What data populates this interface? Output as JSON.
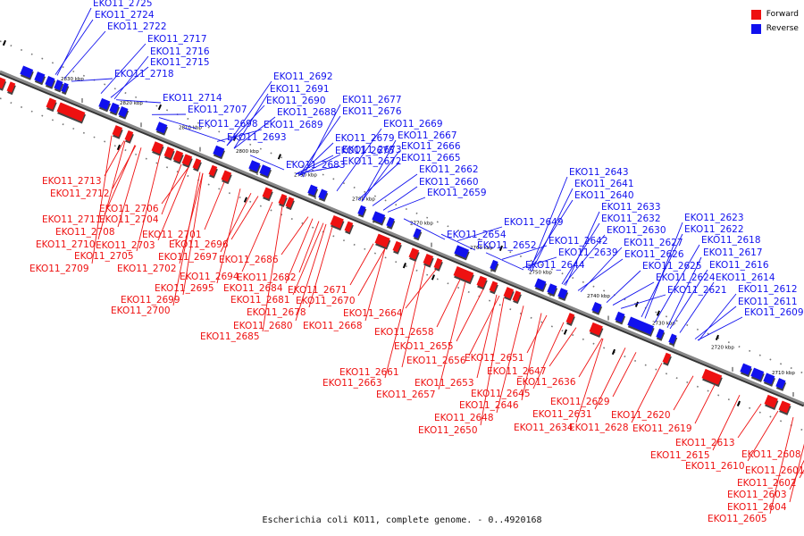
{
  "legend": [
    {
      "label": "Forward",
      "color": "#ee1111"
    },
    {
      "label": "Reverse",
      "color": "#1111ee"
    }
  ],
  "caption": "Escherichia coli KO11, complete genome. - 0..4920168",
  "colors": {
    "forward": "#ee1111",
    "reverse": "#1111ee",
    "axis": "#888888"
  },
  "axis_ticks": [
    "2830 kbp",
    "2820 kbp",
    "2810 kbp",
    "2800 kbp",
    "2790 kbp",
    "2780 kbp",
    "2770 kbp",
    "2760 kbp",
    "2750 kbp",
    "2740 kbp",
    "2730 kbp",
    "2720 kbp",
    "2710 kbp"
  ],
  "reverse_labels": [
    "EKO11_2725",
    "EKO11_2724",
    "EKO11_2722",
    "EKO11_2717",
    "EKO11_2716",
    "EKO11_2715",
    "EKO11_2718",
    "EKO11_2714",
    "EKO11_2707",
    "EKO11_2698",
    "EKO11_2693",
    "EKO11_2692",
    "EKO11_2691",
    "EKO11_2690",
    "EKO11_2688",
    "EKO11_2689",
    "EKO11_2683",
    "EKO11_2677",
    "EKO11_2676",
    "EKO11_2669",
    "EKO11_2679",
    "EKO11_2675",
    "EKO11_2673",
    "EKO11_2672",
    "EKO11_2667",
    "EKO11_2666",
    "EKO11_2665",
    "EKO11_2662",
    "EKO11_2660",
    "EKO11_2659",
    "EKO11_2654",
    "EKO11_2649",
    "EKO11_2652",
    "EKO11_2643",
    "EKO11_2641",
    "EKO11_2640",
    "EKO11_2633",
    "EKO11_2632",
    "EKO11_2630",
    "EKO11_2642",
    "EKO11_2639",
    "EKO11_2644",
    "EKO11_2627",
    "EKO11_2626",
    "EKO11_2625",
    "EKO11_2623",
    "EKO11_2622",
    "EKO11_2618",
    "EKO11_2617",
    "EKO11_2616",
    "EKO11_2624",
    "EKO11_2621",
    "EKO11_2614",
    "EKO11_2612",
    "EKO11_2611",
    "EKO11_2609"
  ],
  "forward_labels": [
    "EKO11_2713",
    "EKO11_2712",
    "EKO11_2706",
    "EKO11_2711",
    "EKO11_2704",
    "EKO11_2708",
    "EKO11_2710",
    "EKO11_2703",
    "EKO11_2701",
    "EKO11_2705",
    "EKO11_2696",
    "EKO11_2697",
    "EKO11_2709",
    "EKO11_2702",
    "EKO11_2686",
    "EKO11_2694",
    "EKO11_2682",
    "EKO11_2695",
    "EKO11_2684",
    "EKO11_2681",
    "EKO11_2699",
    "EKO11_2678",
    "EKO11_2700",
    "EKO11_2680",
    "EKO11_2685",
    "EKO11_2671",
    "EKO11_2670",
    "EKO11_2664",
    "EKO11_2668",
    "EKO11_2658",
    "EKO11_2655",
    "EKO11_2656",
    "EKO11_2651",
    "EKO11_2661",
    "EKO11_2647",
    "EKO11_2663",
    "EKO11_2653",
    "EKO11_2636",
    "EKO11_2657",
    "EKO11_2645",
    "EKO11_2646",
    "EKO11_2629",
    "EKO11_2648",
    "EKO11_2631",
    "EKO11_2620",
    "EKO11_2650",
    "EKO11_2634",
    "EKO11_2628",
    "EKO11_2619",
    "EKO11_2613",
    "EKO11_2615",
    "EKO11_2610",
    "EKO11_2608",
    "EKO11_2601",
    "EKO11_2602",
    "EKO11_2603",
    "EKO11_2604",
    "EKO11_2605"
  ]
}
